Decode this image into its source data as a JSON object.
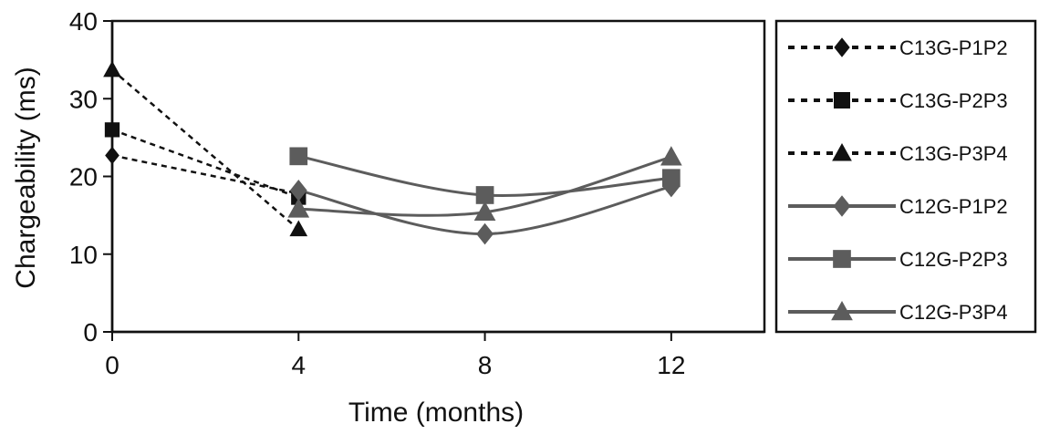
{
  "chart_data": {
    "type": "line",
    "xlabel": "Time (months)",
    "ylabel": "Chargeability (ms)",
    "xlim": [
      0,
      14
    ],
    "ylim": [
      0,
      40
    ],
    "x_ticks": [
      0,
      4,
      8,
      12
    ],
    "y_ticks": [
      0,
      10,
      20,
      30,
      40
    ],
    "grid": false,
    "legend_position": "right",
    "series": [
      {
        "name": "C13G-P1P2",
        "marker": "diamond",
        "line": "dotted",
        "color": "#111111",
        "x": [
          0,
          4
        ],
        "y": [
          22.7,
          17.8
        ]
      },
      {
        "name": "C13G-P2P3",
        "marker": "square",
        "line": "dotted",
        "color": "#111111",
        "x": [
          0,
          4
        ],
        "y": [
          26.0,
          17.3
        ]
      },
      {
        "name": "C13G-P3P4",
        "marker": "triangle",
        "line": "dotted",
        "color": "#111111",
        "x": [
          0,
          4
        ],
        "y": [
          33.7,
          13.2
        ]
      },
      {
        "name": "C12G-P1P2",
        "marker": "diamond",
        "line": "solid",
        "color": "#5c5c5c",
        "x": [
          4,
          8,
          12
        ],
        "y": [
          18.2,
          12.6,
          18.7
        ]
      },
      {
        "name": "C12G-P2P3",
        "marker": "square",
        "line": "solid",
        "color": "#5c5c5c",
        "x": [
          4,
          8,
          12
        ],
        "y": [
          22.6,
          17.6,
          19.8
        ]
      },
      {
        "name": "C12G-P3P4",
        "marker": "triangle",
        "line": "solid",
        "color": "#5c5c5c",
        "x": [
          4,
          8,
          12
        ],
        "y": [
          15.8,
          15.4,
          22.5
        ]
      }
    ]
  }
}
